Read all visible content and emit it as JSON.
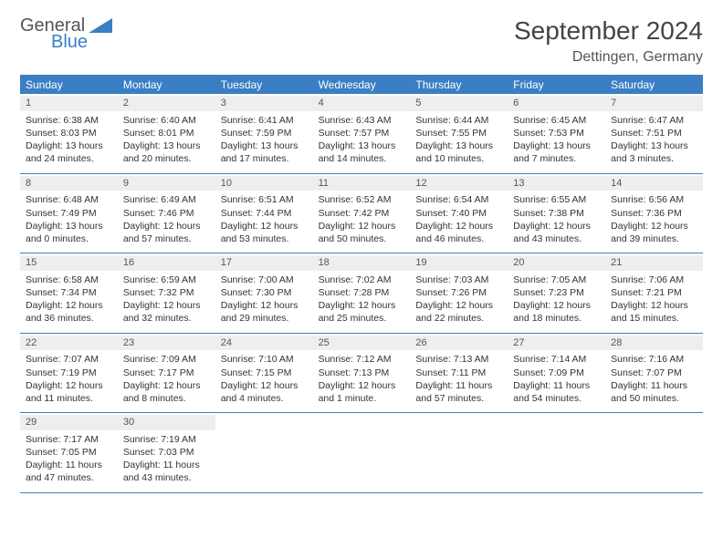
{
  "logo": {
    "line1": "General",
    "line2": "Blue"
  },
  "title": "September 2024",
  "location": "Dettingen, Germany",
  "colors": {
    "accent": "#3a7fc4",
    "band": "#eeeeee",
    "text": "#333333",
    "background": "#ffffff"
  },
  "dayHeaders": [
    "Sunday",
    "Monday",
    "Tuesday",
    "Wednesday",
    "Thursday",
    "Friday",
    "Saturday"
  ],
  "weeks": [
    [
      {
        "n": "1",
        "sr": "6:38 AM",
        "ss": "8:03 PM",
        "dl": "13 hours and 24 minutes."
      },
      {
        "n": "2",
        "sr": "6:40 AM",
        "ss": "8:01 PM",
        "dl": "13 hours and 20 minutes."
      },
      {
        "n": "3",
        "sr": "6:41 AM",
        "ss": "7:59 PM",
        "dl": "13 hours and 17 minutes."
      },
      {
        "n": "4",
        "sr": "6:43 AM",
        "ss": "7:57 PM",
        "dl": "13 hours and 14 minutes."
      },
      {
        "n": "5",
        "sr": "6:44 AM",
        "ss": "7:55 PM",
        "dl": "13 hours and 10 minutes."
      },
      {
        "n": "6",
        "sr": "6:45 AM",
        "ss": "7:53 PM",
        "dl": "13 hours and 7 minutes."
      },
      {
        "n": "7",
        "sr": "6:47 AM",
        "ss": "7:51 PM",
        "dl": "13 hours and 3 minutes."
      }
    ],
    [
      {
        "n": "8",
        "sr": "6:48 AM",
        "ss": "7:49 PM",
        "dl": "13 hours and 0 minutes."
      },
      {
        "n": "9",
        "sr": "6:49 AM",
        "ss": "7:46 PM",
        "dl": "12 hours and 57 minutes."
      },
      {
        "n": "10",
        "sr": "6:51 AM",
        "ss": "7:44 PM",
        "dl": "12 hours and 53 minutes."
      },
      {
        "n": "11",
        "sr": "6:52 AM",
        "ss": "7:42 PM",
        "dl": "12 hours and 50 minutes."
      },
      {
        "n": "12",
        "sr": "6:54 AM",
        "ss": "7:40 PM",
        "dl": "12 hours and 46 minutes."
      },
      {
        "n": "13",
        "sr": "6:55 AM",
        "ss": "7:38 PM",
        "dl": "12 hours and 43 minutes."
      },
      {
        "n": "14",
        "sr": "6:56 AM",
        "ss": "7:36 PM",
        "dl": "12 hours and 39 minutes."
      }
    ],
    [
      {
        "n": "15",
        "sr": "6:58 AM",
        "ss": "7:34 PM",
        "dl": "12 hours and 36 minutes."
      },
      {
        "n": "16",
        "sr": "6:59 AM",
        "ss": "7:32 PM",
        "dl": "12 hours and 32 minutes."
      },
      {
        "n": "17",
        "sr": "7:00 AM",
        "ss": "7:30 PM",
        "dl": "12 hours and 29 minutes."
      },
      {
        "n": "18",
        "sr": "7:02 AM",
        "ss": "7:28 PM",
        "dl": "12 hours and 25 minutes."
      },
      {
        "n": "19",
        "sr": "7:03 AM",
        "ss": "7:26 PM",
        "dl": "12 hours and 22 minutes."
      },
      {
        "n": "20",
        "sr": "7:05 AM",
        "ss": "7:23 PM",
        "dl": "12 hours and 18 minutes."
      },
      {
        "n": "21",
        "sr": "7:06 AM",
        "ss": "7:21 PM",
        "dl": "12 hours and 15 minutes."
      }
    ],
    [
      {
        "n": "22",
        "sr": "7:07 AM",
        "ss": "7:19 PM",
        "dl": "12 hours and 11 minutes."
      },
      {
        "n": "23",
        "sr": "7:09 AM",
        "ss": "7:17 PM",
        "dl": "12 hours and 8 minutes."
      },
      {
        "n": "24",
        "sr": "7:10 AM",
        "ss": "7:15 PM",
        "dl": "12 hours and 4 minutes."
      },
      {
        "n": "25",
        "sr": "7:12 AM",
        "ss": "7:13 PM",
        "dl": "12 hours and 1 minute."
      },
      {
        "n": "26",
        "sr": "7:13 AM",
        "ss": "7:11 PM",
        "dl": "11 hours and 57 minutes."
      },
      {
        "n": "27",
        "sr": "7:14 AM",
        "ss": "7:09 PM",
        "dl": "11 hours and 54 minutes."
      },
      {
        "n": "28",
        "sr": "7:16 AM",
        "ss": "7:07 PM",
        "dl": "11 hours and 50 minutes."
      }
    ],
    [
      {
        "n": "29",
        "sr": "7:17 AM",
        "ss": "7:05 PM",
        "dl": "11 hours and 47 minutes."
      },
      {
        "n": "30",
        "sr": "7:19 AM",
        "ss": "7:03 PM",
        "dl": "11 hours and 43 minutes."
      },
      null,
      null,
      null,
      null,
      null
    ]
  ],
  "labels": {
    "sunrise": "Sunrise:",
    "sunset": "Sunset:",
    "daylight": "Daylight:"
  }
}
